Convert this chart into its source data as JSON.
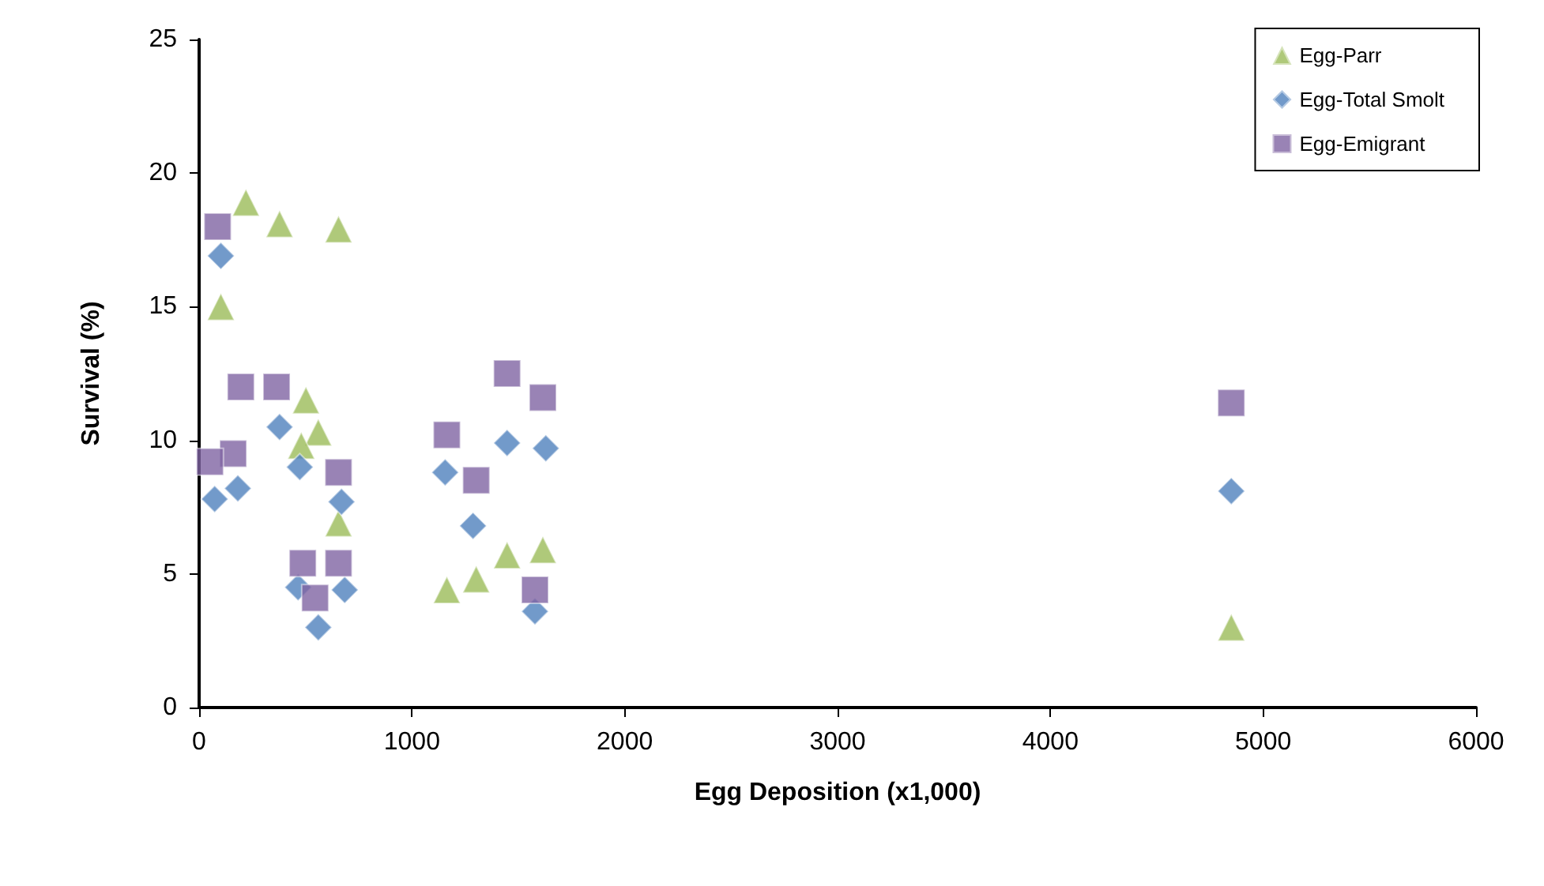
{
  "chart_data": {
    "type": "scatter",
    "xlabel": "Egg Deposition (x1,000)",
    "ylabel": "Survival (%)",
    "xlim": [
      0,
      6000
    ],
    "xticks": [
      0,
      1000,
      2000,
      3000,
      4000,
      5000,
      6000
    ],
    "ylim": [
      0,
      25
    ],
    "yticks": [
      0,
      5,
      10,
      15,
      20,
      25
    ],
    "grid": false,
    "legend": "top right",
    "series": [
      {
        "name": "Egg-Parr",
        "color": "#9bbb59",
        "marker": "triangle",
        "x": [
          102,
          220,
          378,
          655,
          502,
          560,
          480,
          655,
          1164,
          1302,
          1447,
          1615,
          4850
        ],
        "values": [
          15.0,
          18.9,
          18.1,
          17.9,
          11.5,
          10.3,
          9.8,
          6.9,
          4.4,
          4.8,
          5.7,
          5.9,
          3.0
        ]
      },
      {
        "name": "Egg-Total Smolt",
        "color": "#4f81bd",
        "marker": "diamond",
        "x": [
          102,
          73,
          182,
          196,
          378,
          473,
          669,
          465,
          684,
          560,
          1156,
          1447,
          1629,
          1287,
          1578,
          4850
        ],
        "values": [
          16.9,
          7.8,
          8.2,
          null,
          10.5,
          9.0,
          7.7,
          4.5,
          4.4,
          3.0,
          8.8,
          9.9,
          9.7,
          6.8,
          3.6,
          8.1
        ]
      },
      {
        "name": "Egg-Emigrant",
        "color": "#8064a2",
        "marker": "square",
        "x": [
          87,
          196,
          364,
          160,
          51,
          655,
          487,
          655,
          545,
          1447,
          1615,
          1164,
          1302,
          1578,
          4850
        ],
        "values": [
          18.0,
          12.0,
          12.0,
          9.5,
          9.2,
          8.8,
          5.4,
          5.4,
          4.1,
          12.5,
          11.6,
          10.2,
          8.5,
          4.4,
          11.4
        ]
      }
    ]
  }
}
